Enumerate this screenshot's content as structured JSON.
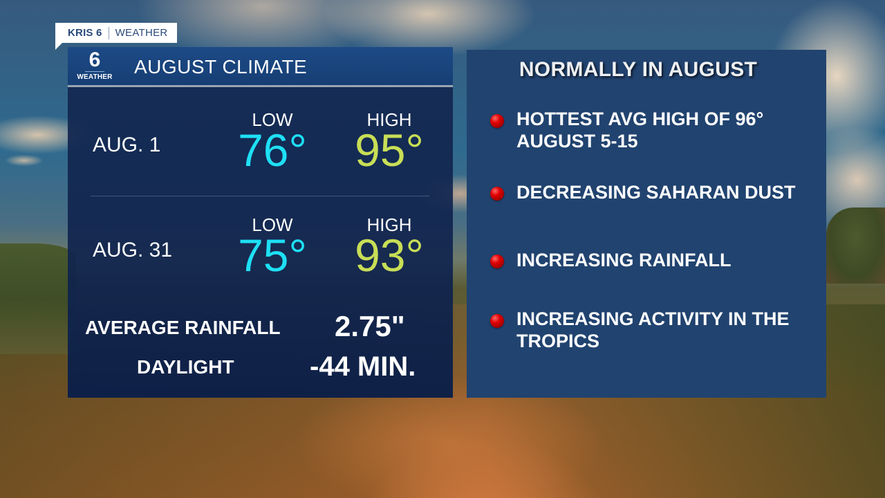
{
  "brand": {
    "station": "KRIS 6",
    "section": "WEATHER"
  },
  "left_panel": {
    "logo": {
      "number": "6",
      "label": "WEATHER"
    },
    "title": "AUGUST CLIMATE",
    "rows": [
      {
        "date": "AUG. 1",
        "low_label": "LOW",
        "low_value": "76°",
        "high_label": "HIGH",
        "high_value": "95°"
      },
      {
        "date": "AUG. 31",
        "low_label": "LOW",
        "low_value": "75°",
        "high_label": "HIGH",
        "high_value": "93°"
      }
    ],
    "rainfall": {
      "label": "AVERAGE RAINFALL",
      "value": "2.75\""
    },
    "daylight": {
      "label": "DAYLIGHT",
      "value": "-44 MIN."
    }
  },
  "right_panel": {
    "title": "NORMALLY IN AUGUST",
    "bullets": [
      {
        "text": "HOTTEST AVG HIGH OF 96° AUGUST 5-15"
      },
      {
        "text": "DECREASING SAHARAN DUST"
      },
      {
        "text": "INCREASING RAINFALL"
      },
      {
        "text": "INCREASING ACTIVITY IN THE TROPICS"
      }
    ]
  },
  "colors": {
    "low_temp": "#1ee0f5",
    "high_temp": "#c8de56",
    "panel_blue": "#21436f",
    "header_blue": "#1d4a86",
    "bullet_red": "#e00000"
  }
}
